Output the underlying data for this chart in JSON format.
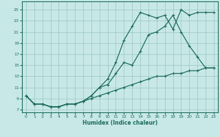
{
  "xlabel": "Humidex (Indice chaleur)",
  "bg_color": "#c8e8e8",
  "grid_color": "#a0c8c8",
  "line_color": "#1a6b5a",
  "xlim": [
    -0.5,
    23.5
  ],
  "ylim": [
    6.5,
    26.5
  ],
  "xticks": [
    0,
    1,
    2,
    3,
    4,
    5,
    6,
    7,
    8,
    9,
    10,
    11,
    12,
    13,
    14,
    15,
    16,
    17,
    18,
    19,
    20,
    21,
    22,
    23
  ],
  "yticks": [
    7,
    9,
    11,
    13,
    15,
    17,
    19,
    21,
    23,
    25
  ],
  "line1_x": [
    0,
    1,
    2,
    3,
    4,
    5,
    6,
    7,
    8,
    9,
    10,
    11,
    12,
    13,
    14,
    15,
    16,
    17,
    18,
    19,
    20,
    21,
    22,
    23
  ],
  "line1_y": [
    9.5,
    8.0,
    8.0,
    7.5,
    7.5,
    8.0,
    8.0,
    8.5,
    9.5,
    11.0,
    12.5,
    15.5,
    19.5,
    22.0,
    24.5,
    24.0,
    23.5,
    24.0,
    21.5,
    25.0,
    24.0,
    24.5,
    24.5,
    24.5
  ],
  "line2_x": [
    0,
    1,
    2,
    3,
    4,
    5,
    6,
    7,
    8,
    9,
    10,
    11,
    12,
    13,
    14,
    15,
    16,
    17,
    18,
    19,
    20,
    21,
    22,
    23
  ],
  "line2_y": [
    9.5,
    8.0,
    8.0,
    7.5,
    7.5,
    8.0,
    8.0,
    8.5,
    9.5,
    11.0,
    11.5,
    13.5,
    15.5,
    15.0,
    17.5,
    20.5,
    21.0,
    22.0,
    24.0,
    21.0,
    18.5,
    16.5,
    14.5,
    14.5
  ],
  "line3_x": [
    0,
    1,
    2,
    3,
    4,
    5,
    6,
    7,
    8,
    9,
    10,
    11,
    12,
    13,
    14,
    15,
    16,
    17,
    18,
    19,
    20,
    21,
    22,
    23
  ],
  "line3_y": [
    9.5,
    8.0,
    8.0,
    7.5,
    7.5,
    8.0,
    8.0,
    8.5,
    9.0,
    9.5,
    10.0,
    10.5,
    11.0,
    11.5,
    12.0,
    12.5,
    13.0,
    13.0,
    13.5,
    13.5,
    14.0,
    14.0,
    14.5,
    14.5
  ]
}
